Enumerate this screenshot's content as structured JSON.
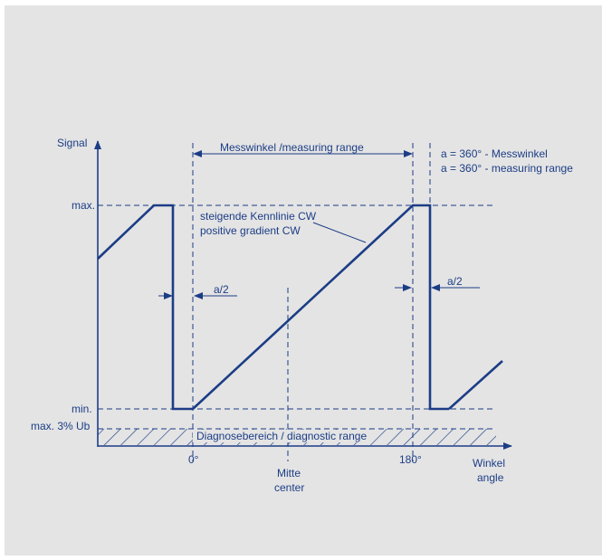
{
  "colors": {
    "background": "#e4e4e4",
    "line": "#1c3d86",
    "text": "#1c3d86"
  },
  "axes": {
    "y_label": "Signal",
    "x_label": "Winkel",
    "x_label_en": "angle"
  },
  "y_levels": {
    "max": "max.",
    "min": "min.",
    "diag": "max. 3% Ub"
  },
  "x_marks": {
    "zero": "0°",
    "center_de": "Mitte",
    "center_en": "center",
    "end": "180°"
  },
  "annotations": {
    "measuring_range": "Messwinkel /measuring range",
    "gap_left": "a/2",
    "gap_right": "a/2",
    "formula_de": "a = 360° - Messwinkel",
    "formula_en": "a = 360° - measuring range",
    "curve_de": "steigende Kennlinie CW",
    "curve_en": "positive gradient CW",
    "diagnostic": "Diagnosebereich / diagnostic range"
  }
}
